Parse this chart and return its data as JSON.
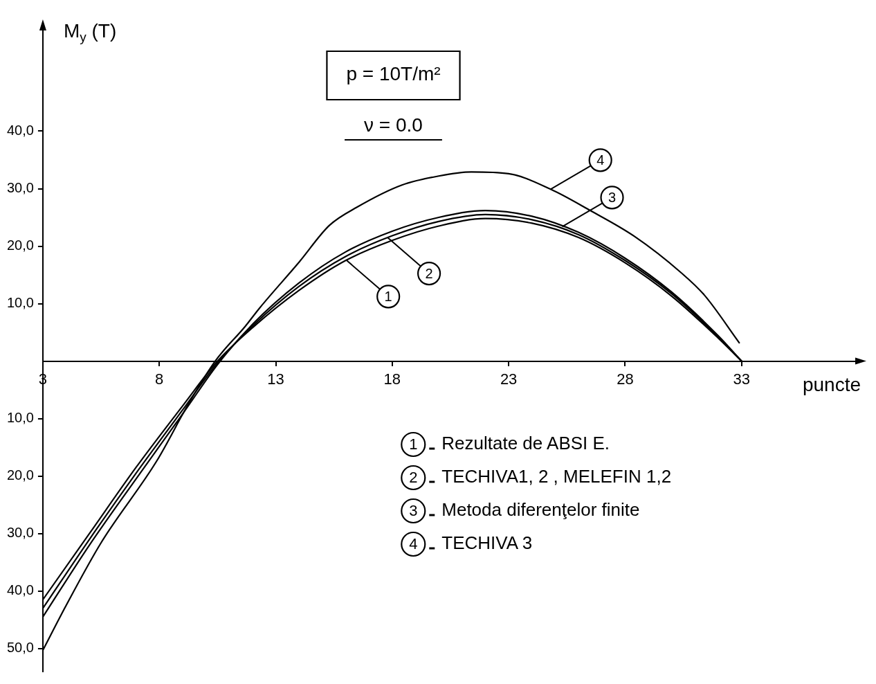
{
  "chart_data": {
    "type": "line",
    "title": "p = 10T/m²",
    "subtitle": "ν = 0.0",
    "xlabel": "puncte",
    "ylabel": "M$_{y}$ (T)",
    "xlim": [
      3,
      38
    ],
    "xticks": [
      3,
      8,
      13,
      18,
      23,
      28,
      33
    ],
    "ylim": [
      -54,
      58
    ],
    "yticks": [
      {
        "value": -50,
        "label": "50,0"
      },
      {
        "value": -40,
        "label": "40,0"
      },
      {
        "value": -30,
        "label": "30,0"
      },
      {
        "value": -20,
        "label": "20,0"
      },
      {
        "value": -10,
        "label": "10,0"
      },
      {
        "value": 10,
        "label": "10,0"
      },
      {
        "value": 20,
        "label": "20,0"
      },
      {
        "value": 30,
        "label": "30,0"
      },
      {
        "value": 40,
        "label": "40,0"
      }
    ],
    "legend": "bottom right",
    "annotations": [
      {
        "text": "1",
        "x": 16.05,
        "y": 17.5
      },
      {
        "text": "2",
        "x": 17.8,
        "y": 21.5
      },
      {
        "text": "3",
        "x": 25.3,
        "y": 23.4
      },
      {
        "text": "4",
        "x": 24.8,
        "y": 29.9
      }
    ],
    "x": [
      3,
      5,
      7,
      9,
      10.5,
      12,
      14,
      16,
      18,
      20,
      22,
      24,
      26,
      28,
      30,
      32,
      33
    ],
    "series": [
      {
        "name": "Rezultate de ABSI E.",
        "color": "#000000",
        "values": [
          -41.5,
          -30,
          -18.5,
          -7.8,
          0,
          5.8,
          12.3,
          17.5,
          21,
          23.5,
          24.8,
          24,
          21.5,
          17.1,
          11.3,
          4,
          0
        ]
      },
      {
        "name": "TECHIVA1, 2 , MELEFIN 1,2",
        "color": "#000000",
        "values": [
          -43,
          -31,
          -19.5,
          -8.5,
          -0.3,
          6.1,
          13,
          18.2,
          21.8,
          24.3,
          25.5,
          24.6,
          22,
          17.5,
          11.7,
          4.2,
          0
        ]
      },
      {
        "name": "Metoda diferenţelor finite",
        "color": "#000000",
        "values": [
          -44.5,
          -32,
          -20.5,
          -9.2,
          -0.6,
          6.4,
          13.6,
          19,
          22.6,
          25,
          26.2,
          25.2,
          22.4,
          17.9,
          12,
          4.4,
          0
        ]
      },
      {
        "name": "TECHIVA 3",
        "color": "#000000",
        "x": [
          3,
          4,
          5.5,
          7.9,
          9.3,
          10.4,
          11.7,
          12.3,
          14,
          15.3,
          16.5,
          18.4,
          20,
          21.4,
          23,
          24.8,
          26.5,
          28.4,
          30.4,
          31.4,
          32.9
        ],
        "values": [
          -50.3,
          -42.5,
          -31.6,
          -17.3,
          -7.1,
          0,
          6.1,
          9.2,
          17.2,
          23.6,
          26.8,
          30.6,
          32.2,
          32.9,
          32.6,
          29.9,
          26.2,
          21.7,
          15.4,
          11.5,
          3.2
        ]
      }
    ]
  }
}
